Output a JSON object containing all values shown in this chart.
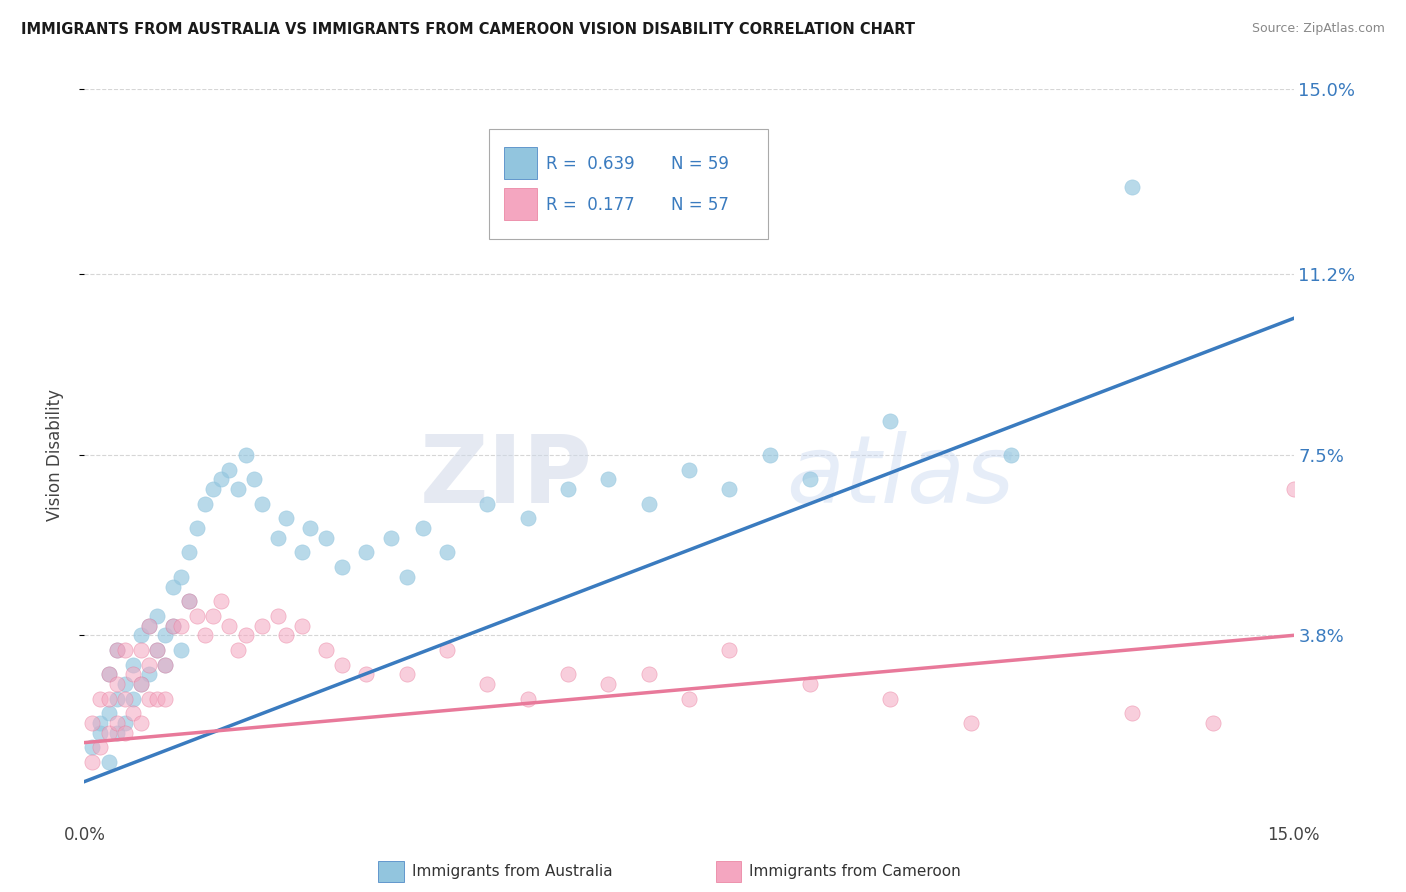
{
  "title": "IMMIGRANTS FROM AUSTRALIA VS IMMIGRANTS FROM CAMEROON VISION DISABILITY CORRELATION CHART",
  "source": "Source: ZipAtlas.com",
  "ylabel": "Vision Disability",
  "xlim": [
    0.0,
    0.15
  ],
  "ylim": [
    0.0,
    0.15
  ],
  "yticks": [
    0.038,
    0.075,
    0.112,
    0.15
  ],
  "ytick_labels": [
    "3.8%",
    "7.5%",
    "11.2%",
    "15.0%"
  ],
  "watermark_zip": "ZIP",
  "watermark_atlas": "atlas",
  "legend_r1": "R =  0.639",
  "legend_n1": "N = 59",
  "legend_r2": "R =  0.177",
  "legend_n2": "N = 57",
  "color_blue": "#92c5de",
  "color_pink": "#f4a6c0",
  "color_blue_line": "#3a7bbf",
  "color_pink_line": "#e8799a",
  "color_blue_text": "#3a7bbf",
  "color_grid": "#cccccc",
  "aus_trend_x0": 0.0,
  "aus_trend_y0": 0.008,
  "aus_trend_x1": 0.15,
  "aus_trend_y1": 0.103,
  "cam_trend_x0": 0.0,
  "cam_trend_y0": 0.016,
  "cam_trend_x1": 0.15,
  "cam_trend_y1": 0.038,
  "australia_x": [
    0.001,
    0.002,
    0.002,
    0.003,
    0.003,
    0.003,
    0.004,
    0.004,
    0.004,
    0.005,
    0.005,
    0.006,
    0.006,
    0.007,
    0.007,
    0.008,
    0.008,
    0.009,
    0.009,
    0.01,
    0.01,
    0.011,
    0.011,
    0.012,
    0.012,
    0.013,
    0.013,
    0.014,
    0.015,
    0.016,
    0.017,
    0.018,
    0.019,
    0.02,
    0.021,
    0.022,
    0.024,
    0.025,
    0.027,
    0.028,
    0.03,
    0.032,
    0.035,
    0.038,
    0.04,
    0.042,
    0.045,
    0.05,
    0.055,
    0.06,
    0.065,
    0.07,
    0.075,
    0.08,
    0.085,
    0.09,
    0.1,
    0.115,
    0.13
  ],
  "australia_y": [
    0.015,
    0.018,
    0.02,
    0.012,
    0.022,
    0.03,
    0.018,
    0.025,
    0.035,
    0.02,
    0.028,
    0.025,
    0.032,
    0.028,
    0.038,
    0.03,
    0.04,
    0.035,
    0.042,
    0.032,
    0.038,
    0.04,
    0.048,
    0.035,
    0.05,
    0.045,
    0.055,
    0.06,
    0.065,
    0.068,
    0.07,
    0.072,
    0.068,
    0.075,
    0.07,
    0.065,
    0.058,
    0.062,
    0.055,
    0.06,
    0.058,
    0.052,
    0.055,
    0.058,
    0.05,
    0.06,
    0.055,
    0.065,
    0.062,
    0.068,
    0.07,
    0.065,
    0.072,
    0.068,
    0.075,
    0.07,
    0.082,
    0.075,
    0.13
  ],
  "cameroon_x": [
    0.001,
    0.001,
    0.002,
    0.002,
    0.003,
    0.003,
    0.003,
    0.004,
    0.004,
    0.004,
    0.005,
    0.005,
    0.005,
    0.006,
    0.006,
    0.007,
    0.007,
    0.007,
    0.008,
    0.008,
    0.008,
    0.009,
    0.009,
    0.01,
    0.01,
    0.011,
    0.012,
    0.013,
    0.014,
    0.015,
    0.016,
    0.017,
    0.018,
    0.019,
    0.02,
    0.022,
    0.024,
    0.025,
    0.027,
    0.03,
    0.032,
    0.035,
    0.04,
    0.045,
    0.05,
    0.055,
    0.06,
    0.065,
    0.07,
    0.075,
    0.08,
    0.09,
    0.1,
    0.11,
    0.13,
    0.14,
    0.15
  ],
  "cameroon_y": [
    0.012,
    0.02,
    0.015,
    0.025,
    0.018,
    0.025,
    0.03,
    0.02,
    0.028,
    0.035,
    0.018,
    0.025,
    0.035,
    0.022,
    0.03,
    0.02,
    0.028,
    0.035,
    0.025,
    0.032,
    0.04,
    0.025,
    0.035,
    0.025,
    0.032,
    0.04,
    0.04,
    0.045,
    0.042,
    0.038,
    0.042,
    0.045,
    0.04,
    0.035,
    0.038,
    0.04,
    0.042,
    0.038,
    0.04,
    0.035,
    0.032,
    0.03,
    0.03,
    0.035,
    0.028,
    0.025,
    0.03,
    0.028,
    0.03,
    0.025,
    0.035,
    0.028,
    0.025,
    0.02,
    0.022,
    0.02,
    0.068
  ]
}
